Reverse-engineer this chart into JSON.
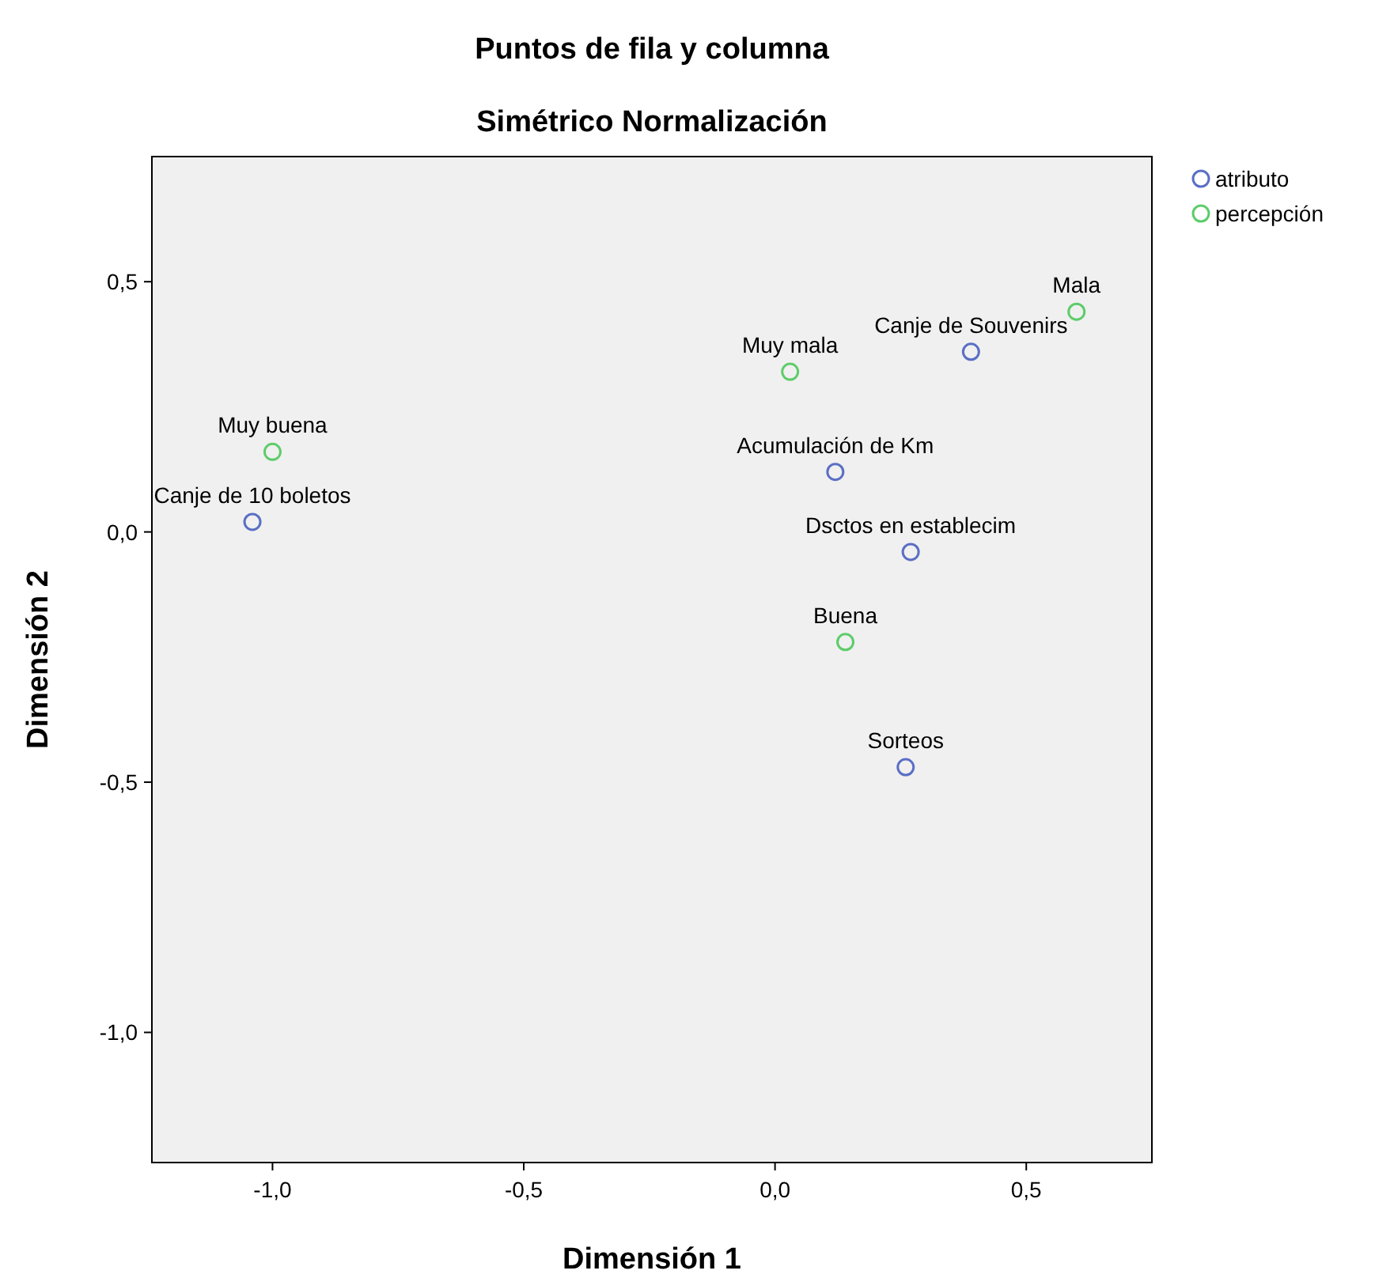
{
  "chart_data": {
    "type": "scatter",
    "title": "Puntos de fila y columna",
    "subtitle": "Simétrico Normalización",
    "xlabel": "Dimensión 1",
    "ylabel": "Dimensión 2",
    "xlim": [
      -1.24,
      0.75
    ],
    "ylim": [
      -1.26,
      0.75
    ],
    "xticks": [
      {
        "value": -1,
        "label": "-1,0"
      },
      {
        "value": -0.5,
        "label": "-0,5"
      },
      {
        "value": 0,
        "label": "0,0"
      },
      {
        "value": 0.5,
        "label": "0,5"
      }
    ],
    "yticks": [
      {
        "value": -1,
        "label": "-1,0"
      },
      {
        "value": -0.5,
        "label": "-0,5"
      },
      {
        "value": 0,
        "label": "0,0"
      },
      {
        "value": 0.5,
        "label": "0,5"
      }
    ],
    "grid": false,
    "legend": "top right",
    "marker": "circle",
    "series": [
      {
        "name": "atributo",
        "color": "#5a6fc4",
        "x": [
          -1.04,
          0.39,
          0.12,
          0.27,
          0.26
        ],
        "values": [
          0.02,
          0.36,
          0.12,
          -0.04,
          -0.47
        ]
      },
      {
        "name": "percepción",
        "color": "#5dcc6a",
        "x": [
          -1.0,
          0.03,
          0.6,
          0.14
        ],
        "values": [
          0.16,
          0.32,
          0.44,
          -0.22
        ]
      }
    ],
    "annotations": [
      {
        "text": "Canje de 10 boletos",
        "x": -1.04,
        "y": 0.02
      },
      {
        "text": "Canje de Souvenirs",
        "x": 0.39,
        "y": 0.36
      },
      {
        "text": "Acumulación de Km",
        "x": 0.12,
        "y": 0.12
      },
      {
        "text": "Dsctos en establecim",
        "x": 0.27,
        "y": -0.04
      },
      {
        "text": "Sorteos",
        "x": 0.26,
        "y": -0.47
      },
      {
        "text": "Muy buena",
        "x": -1.0,
        "y": 0.16
      },
      {
        "text": "Muy mala",
        "x": 0.03,
        "y": 0.32
      },
      {
        "text": "Mala",
        "x": 0.6,
        "y": 0.44
      },
      {
        "text": "Buena",
        "x": 0.14,
        "y": -0.22
      }
    ]
  }
}
